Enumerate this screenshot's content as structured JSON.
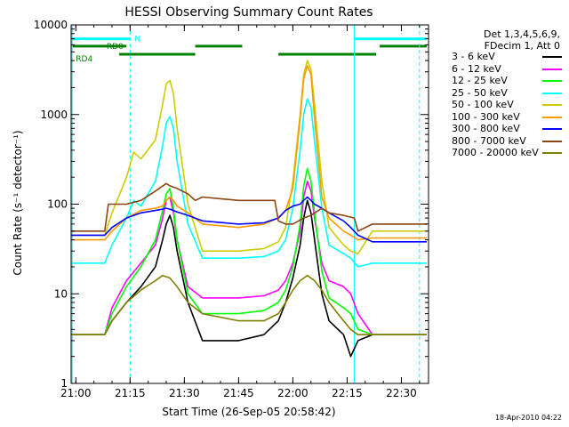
{
  "chart_data": {
    "type": "line",
    "title": "HESSI Observing Summary Count Rates",
    "xlabel": "Start Time (26-Sep-05 20:58:42)",
    "ylabel": "Count Rate (s⁻¹ detector⁻¹)",
    "yscale": "log",
    "ylim": [
      1,
      10000
    ],
    "xlim": [
      "20:58:42",
      "22:37:30"
    ],
    "x_ticks": [
      "21:00",
      "21:15",
      "21:30",
      "21:45",
      "22:00",
      "22:15",
      "22:30"
    ],
    "y_ticks": [
      "1",
      "10",
      "100",
      "1000",
      "10000"
    ],
    "grid": false,
    "legend_position": "right",
    "legend_header": [
      "Det 1,3,4,5,6,9,",
      "FDecim 1, Att 0"
    ],
    "series": [
      {
        "name": "3 - 6 keV",
        "color": "#000000",
        "x": [
          "20:58:42",
          "21:08",
          "21:10",
          "21:14",
          "21:18",
          "21:22",
          "21:24",
          "21:25",
          "21:26",
          "21:27",
          "21:28",
          "21:31",
          "21:35",
          "21:45",
          "21:52",
          "21:56",
          "21:58",
          "22:00",
          "22:02",
          "22:03",
          "22:04",
          "22:05",
          "22:06",
          "22:08",
          "22:10",
          "22:14",
          "22:16",
          "22:18",
          "22:22",
          "22:37"
        ],
        "y": [
          3.5,
          3.5,
          5,
          8,
          12,
          20,
          40,
          60,
          75,
          55,
          30,
          8,
          3,
          3,
          3.5,
          5,
          8,
          15,
          35,
          70,
          110,
          80,
          40,
          10,
          5,
          3.5,
          2,
          3,
          3.5,
          3.5
        ]
      },
      {
        "name": "6 - 12 keV",
        "color": "#ff00ff",
        "x": [
          "20:58:42",
          "21:08",
          "21:10",
          "21:14",
          "21:18",
          "21:22",
          "21:24",
          "21:25",
          "21:26",
          "21:27",
          "21:28",
          "21:31",
          "21:35",
          "21:45",
          "21:52",
          "21:56",
          "21:58",
          "22:00",
          "22:02",
          "22:03",
          "22:04",
          "22:05",
          "22:06",
          "22:08",
          "22:10",
          "22:14",
          "22:16",
          "22:18",
          "22:22",
          "22:37"
        ],
        "y": [
          3.5,
          3.5,
          7,
          14,
          22,
          35,
          70,
          110,
          120,
          80,
          40,
          12,
          9,
          9,
          9.5,
          11,
          14,
          22,
          50,
          120,
          180,
          140,
          70,
          22,
          14,
          12,
          10,
          6,
          3.5,
          3.5
        ]
      },
      {
        "name": "12 - 25 keV",
        "color": "#00ff00",
        "x": [
          "20:58:42",
          "21:08",
          "21:10",
          "21:14",
          "21:18",
          "21:22",
          "21:24",
          "21:25",
          "21:26",
          "21:27",
          "21:28",
          "21:31",
          "21:35",
          "21:45",
          "21:52",
          "21:56",
          "21:58",
          "22:00",
          "22:02",
          "22:03",
          "22:04",
          "22:05",
          "22:06",
          "22:08",
          "22:10",
          "22:14",
          "22:16",
          "22:18",
          "22:22",
          "22:37"
        ],
        "y": [
          3.5,
          3.5,
          6,
          12,
          20,
          40,
          85,
          130,
          150,
          90,
          40,
          10,
          6,
          6,
          6.5,
          8,
          11,
          20,
          60,
          160,
          250,
          180,
          80,
          18,
          9,
          7,
          6,
          4,
          3.5,
          3.5
        ]
      },
      {
        "name": "25 - 50 keV",
        "color": "#00ffff",
        "x": [
          "20:58:42",
          "21:08",
          "21:10",
          "21:14",
          "21:16",
          "21:18",
          "21:22",
          "21:24",
          "21:25",
          "21:26",
          "21:27",
          "21:28",
          "21:31",
          "21:35",
          "21:45",
          "21:52",
          "21:56",
          "21:58",
          "22:00",
          "22:02",
          "22:03",
          "22:04",
          "22:05",
          "22:06",
          "22:08",
          "22:10",
          "22:14",
          "22:16",
          "22:18",
          "22:22",
          "22:37"
        ],
        "y": [
          22,
          22,
          35,
          70,
          110,
          95,
          180,
          450,
          800,
          950,
          700,
          300,
          60,
          25,
          25,
          26,
          30,
          40,
          90,
          400,
          1000,
          1500,
          1200,
          500,
          90,
          35,
          28,
          25,
          20,
          22,
          22
        ]
      },
      {
        "name": "50 - 100 keV",
        "color": "#cccc00",
        "x": [
          "20:58:42",
          "21:08",
          "21:10",
          "21:14",
          "21:16",
          "21:18",
          "21:22",
          "21:24",
          "21:25",
          "21:26",
          "21:27",
          "21:28",
          "21:31",
          "21:35",
          "21:45",
          "21:52",
          "21:56",
          "21:58",
          "22:00",
          "22:02",
          "22:03",
          "22:04",
          "22:05",
          "22:06",
          "22:08",
          "22:10",
          "22:14",
          "22:16",
          "22:18",
          "22:22",
          "22:37"
        ],
        "y": [
          45,
          45,
          80,
          200,
          380,
          320,
          520,
          1300,
          2200,
          2400,
          1700,
          700,
          100,
          30,
          30,
          32,
          38,
          55,
          180,
          1000,
          2800,
          4000,
          3200,
          1300,
          180,
          55,
          35,
          30,
          28,
          50,
          50
        ]
      },
      {
        "name": "100 - 300 keV",
        "color": "#ff9900",
        "x": [
          "20:58:42",
          "21:08",
          "21:10",
          "21:14",
          "21:18",
          "21:22",
          "21:24",
          "21:25",
          "21:26",
          "21:27",
          "21:28",
          "21:31",
          "21:35",
          "21:45",
          "21:52",
          "21:56",
          "21:58",
          "22:00",
          "22:02",
          "22:03",
          "22:04",
          "22:05",
          "22:06",
          "22:08",
          "22:10",
          "22:14",
          "22:16",
          "22:18",
          "22:22",
          "22:37"
        ],
        "y": [
          40,
          40,
          50,
          70,
          85,
          90,
          95,
          110,
          120,
          110,
          95,
          80,
          60,
          55,
          60,
          70,
          85,
          150,
          900,
          2500,
          3500,
          2800,
          900,
          120,
          70,
          50,
          45,
          40,
          42,
          42
        ]
      },
      {
        "name": "300 - 800 keV",
        "color": "#0000ff",
        "x": [
          "20:58:42",
          "21:08",
          "21:10",
          "21:14",
          "21:18",
          "21:22",
          "21:24",
          "21:25",
          "21:26",
          "21:27",
          "21:28",
          "21:31",
          "21:35",
          "21:45",
          "21:52",
          "21:56",
          "21:58",
          "22:00",
          "22:02",
          "22:03",
          "22:04",
          "22:05",
          "22:06",
          "22:08",
          "22:10",
          "22:14",
          "22:16",
          "22:18",
          "22:22",
          "22:37"
        ],
        "y": [
          45,
          45,
          55,
          70,
          80,
          85,
          88,
          90,
          88,
          85,
          82,
          75,
          65,
          60,
          62,
          70,
          85,
          95,
          100,
          110,
          120,
          110,
          100,
          90,
          80,
          65,
          55,
          45,
          38,
          38
        ]
      },
      {
        "name": "800 - 7000 keV",
        "color": "#8b4513",
        "x": [
          "20:58:42",
          "21:08",
          "21:09",
          "21:14",
          "21:18",
          "21:22",
          "21:25",
          "21:26",
          "21:28",
          "21:31",
          "21:33",
          "21:35",
          "21:45",
          "21:55",
          "21:56",
          "21:58",
          "22:00",
          "22:03",
          "22:05",
          "22:08",
          "22:10",
          "22:14",
          "22:17",
          "22:18",
          "22:22",
          "22:37"
        ],
        "y": [
          50,
          50,
          100,
          100,
          110,
          140,
          170,
          160,
          150,
          130,
          110,
          120,
          110,
          110,
          65,
          60,
          60,
          70,
          75,
          90,
          80,
          75,
          70,
          50,
          60,
          60
        ]
      },
      {
        "name": "7000 - 20000 keV",
        "color": "#808000",
        "x": [
          "20:58:42",
          "21:08",
          "21:10",
          "21:14",
          "21:18",
          "21:22",
          "21:24",
          "21:26",
          "21:28",
          "21:31",
          "21:35",
          "21:45",
          "21:52",
          "21:56",
          "21:58",
          "22:00",
          "22:02",
          "22:04",
          "22:06",
          "22:08",
          "22:10",
          "22:14",
          "22:16",
          "22:18",
          "22:22",
          "22:37"
        ],
        "y": [
          3.5,
          3.5,
          5,
          8,
          11,
          14,
          16,
          15,
          12,
          8,
          6,
          5,
          5,
          6,
          8,
          11,
          14,
          16,
          14,
          11,
          8,
          5,
          4,
          3.5,
          3.5,
          3.5
        ]
      }
    ],
    "annotations": [
      {
        "label": "N",
        "color": "#00ffff",
        "y": 7000,
        "segments": [
          [
            "20:59",
            "21:15"
          ],
          [
            "22:17",
            "22:37"
          ]
        ]
      },
      {
        "label": "RD0",
        "color": "#008000",
        "y": 5800,
        "segments": [
          [
            "20:59",
            "21:14"
          ],
          [
            "21:33",
            "21:46"
          ],
          [
            "22:24",
            "22:37"
          ]
        ]
      },
      {
        "label": "RD4",
        "color": "#008000",
        "y": 4700,
        "segments": [
          [
            "21:12",
            "21:33"
          ],
          [
            "21:56",
            "22:23"
          ]
        ]
      },
      {
        "label": "",
        "color": "#00ffff",
        "style": "solid",
        "vlines": [
          "20:59",
          "22:17"
        ]
      },
      {
        "label": "",
        "color": "#00ffff",
        "style": "dashed",
        "vlines": [
          "21:15",
          "22:35"
        ]
      }
    ]
  },
  "footer_text": "18-Apr-2010 04:22"
}
